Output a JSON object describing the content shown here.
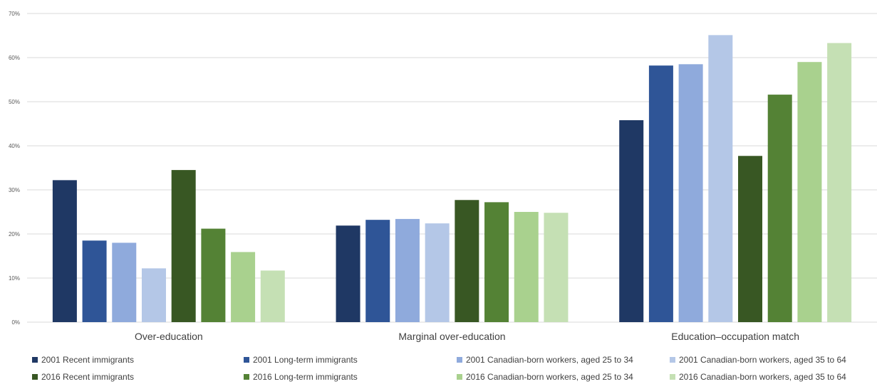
{
  "chart_data": {
    "type": "bar",
    "title": "",
    "xlabel": "",
    "ylabel": "",
    "ylim": [
      0,
      70
    ],
    "yticks": [
      0,
      10,
      20,
      30,
      40,
      50,
      60,
      70
    ],
    "ytick_labels": [
      "0%",
      "10%",
      "20%",
      "30%",
      "40%",
      "50%",
      "60%",
      "70%"
    ],
    "grid": true,
    "legend_position": "bottom",
    "categories": [
      "Over-education",
      "Marginal over-education",
      "Education–occupation match"
    ],
    "series": [
      {
        "name": "2001 Recent immigrants",
        "color": "#1f3864",
        "values": [
          32.2,
          21.9,
          45.8
        ]
      },
      {
        "name": "2001 Long-term immigrants",
        "color": "#2f5597",
        "values": [
          18.5,
          23.2,
          58.2
        ]
      },
      {
        "name": "2001 Canadian-born workers, aged 25 to 34",
        "color": "#8faadc",
        "values": [
          18.0,
          23.4,
          58.5
        ]
      },
      {
        "name": "2001 Canadian-born workers, aged 35 to 64",
        "color": "#b4c7e7",
        "values": [
          12.2,
          22.4,
          65.1
        ]
      },
      {
        "name": "2016 Recent immigrants",
        "color": "#385723",
        "values": [
          34.5,
          27.7,
          37.7
        ]
      },
      {
        "name": "2016 Long-term immigrants",
        "color": "#548235",
        "values": [
          21.2,
          27.2,
          51.6
        ]
      },
      {
        "name": "2016 Canadian-born workers, aged 25 to 34",
        "color": "#a9d18e",
        "values": [
          15.9,
          25.0,
          59.0
        ]
      },
      {
        "name": "2016 Canadian-born workers, aged 35 to 64",
        "color": "#c5e0b4",
        "values": [
          11.7,
          24.8,
          63.3
        ]
      }
    ]
  }
}
